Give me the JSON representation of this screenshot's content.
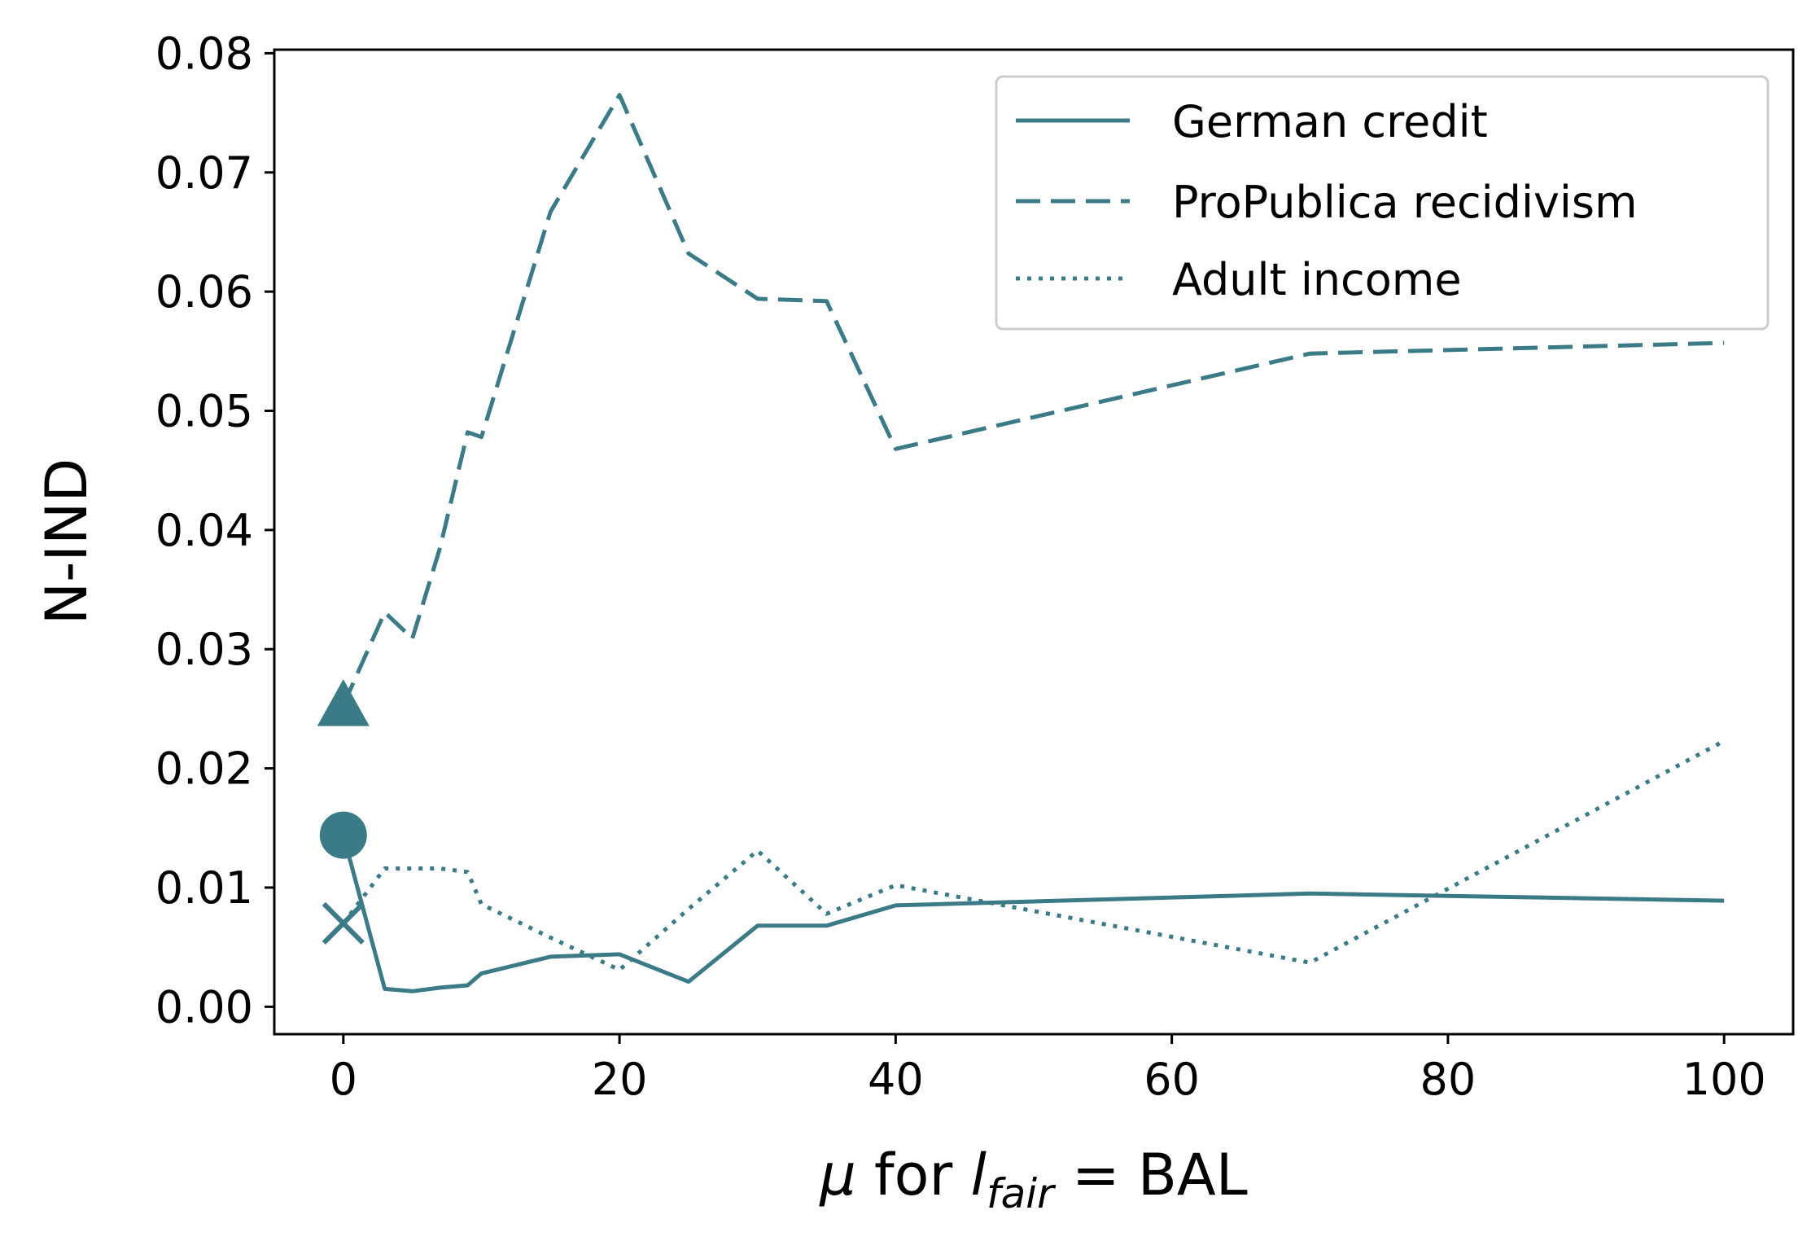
{
  "chart_data": {
    "type": "line",
    "title": "",
    "xlabel": {
      "prefix": "μ for ",
      "l": "l",
      "sub": "fair",
      "suffix": " = BAL"
    },
    "ylabel": "N-IND",
    "xlim": [
      -5,
      105
    ],
    "ylim": [
      -0.0023,
      0.0803
    ],
    "xticks": [
      0,
      20,
      40,
      60,
      80,
      100
    ],
    "xtick_labels": [
      "0",
      "20",
      "40",
      "60",
      "80",
      "100"
    ],
    "yticks": [
      0.0,
      0.01,
      0.02,
      0.03,
      0.04,
      0.05,
      0.06,
      0.07,
      0.08
    ],
    "ytick_labels": [
      "0.00",
      "0.01",
      "0.02",
      "0.03",
      "0.04",
      "0.05",
      "0.06",
      "0.07",
      "0.08"
    ],
    "grid": false,
    "legend_position": "top-right",
    "color": "#3b7a87",
    "series": [
      {
        "name": "German credit",
        "style": "solid",
        "x": [
          0,
          3,
          5,
          7,
          9,
          10,
          15,
          20,
          25,
          30,
          35,
          40,
          70,
          100
        ],
        "y": [
          0.0144,
          0.0015,
          0.0013,
          0.0016,
          0.0018,
          0.0028,
          0.0042,
          0.0044,
          0.0021,
          0.0068,
          0.0068,
          0.0085,
          0.0095,
          0.0089
        ]
      },
      {
        "name": "ProPublica recidivism",
        "style": "dashed",
        "x": [
          0,
          3,
          5,
          7,
          9,
          10,
          15,
          20,
          25,
          30,
          35,
          40,
          70,
          100
        ],
        "y": [
          0.0253,
          0.0331,
          0.0309,
          0.0385,
          0.0482,
          0.0478,
          0.0667,
          0.0765,
          0.0632,
          0.0594,
          0.0592,
          0.0468,
          0.0548,
          0.0557
        ]
      },
      {
        "name": "Adult income",
        "style": "dotted",
        "x": [
          0,
          3,
          5,
          7,
          9,
          10,
          15,
          20,
          25,
          30,
          35,
          40,
          70,
          100
        ],
        "y": [
          0.007,
          0.0116,
          0.0116,
          0.0116,
          0.0113,
          0.0086,
          0.0058,
          0.0031,
          0.0082,
          0.0131,
          0.0078,
          0.0102,
          0.0037,
          0.0223
        ]
      }
    ],
    "markers": [
      {
        "series": "German credit",
        "shape": "circle",
        "x": 0,
        "y": 0.0144
      },
      {
        "series": "ProPublica recidivism",
        "shape": "triangle",
        "x": 0,
        "y": 0.0253
      },
      {
        "series": "Adult income",
        "shape": "x",
        "x": 0,
        "y": 0.007
      }
    ]
  }
}
